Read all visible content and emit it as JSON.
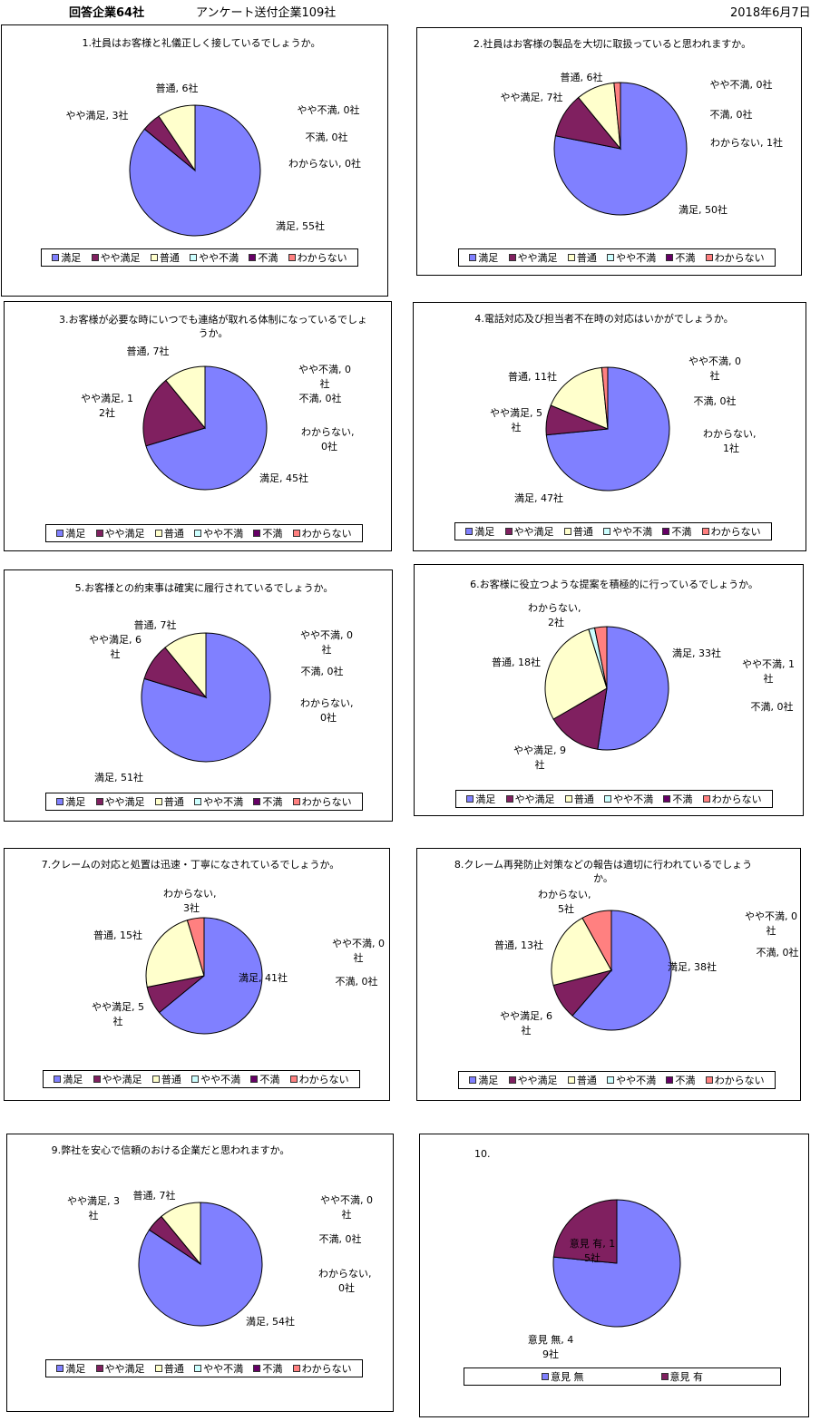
{
  "header": {
    "title": "回答企業64社",
    "sent": "アンケート送付企業109社",
    "date": "2018年6月7日"
  },
  "colors": {
    "満足": "#8080ff",
    "やや満足": "#802060",
    "普通": "#ffffcc",
    "やや不満": "#ccffff",
    "不満": "#660066",
    "わからない": "#ff8080",
    "意見 無": "#8080ff",
    "意見 有": "#802060"
  },
  "legend_labels": [
    "満足",
    "やや満足",
    "普通",
    "やや不満",
    "不満",
    "わからない"
  ],
  "chart_data": [
    {
      "type": "pie",
      "title": "1.社員はお客様と礼儀正しく接しているでしょうか。",
      "categories": [
        "満足",
        "やや満足",
        "普通",
        "やや不満",
        "不満",
        "わからない"
      ],
      "values": [
        55,
        3,
        6,
        0,
        0,
        0
      ],
      "data_labels": [
        "満足, 55社",
        "やや満足, 3社",
        "普通, 6社",
        "やや不満, 0社",
        "不満, 0社",
        "わからない, 0社"
      ]
    },
    {
      "type": "pie",
      "title": "2.社員はお客様の製品を大切に取扱っていると思われますか。",
      "categories": [
        "満足",
        "やや満足",
        "普通",
        "やや不満",
        "不満",
        "わからない"
      ],
      "values": [
        50,
        7,
        6,
        0,
        0,
        1
      ],
      "data_labels": [
        "満足, 50社",
        "やや満足, 7社",
        "普通, 6社",
        "やや不満, 0社",
        "不満, 0社",
        "わからない, 1社"
      ]
    },
    {
      "type": "pie",
      "title": "3.お客様が必要な時にいつでも連絡が取れる体制になっているでしょうか。",
      "categories": [
        "満足",
        "やや満足",
        "普通",
        "やや不満",
        "不満",
        "わからない"
      ],
      "values": [
        45,
        12,
        7,
        0,
        0,
        0
      ],
      "data_labels": [
        "満足, 45社",
        "やや満足, 12社",
        "普通, 7社",
        "やや不満, 0社",
        "不満, 0社",
        "わからない, 0社"
      ]
    },
    {
      "type": "pie",
      "title": "4.電話対応及び担当者不在時の対応はいかがでしょうか。",
      "categories": [
        "満足",
        "やや満足",
        "普通",
        "やや不満",
        "不満",
        "わからない"
      ],
      "values": [
        47,
        5,
        11,
        0,
        0,
        1
      ],
      "data_labels": [
        "満足, 47社",
        "やや満足, 5社",
        "普通, 11社",
        "やや不満, 0社",
        "不満, 0社",
        "わからない, 1社"
      ]
    },
    {
      "type": "pie",
      "title": "5.お客様との約束事は確実に履行されているでしょうか。",
      "categories": [
        "満足",
        "やや満足",
        "普通",
        "やや不満",
        "不満",
        "わからない"
      ],
      "values": [
        51,
        6,
        7,
        0,
        0,
        0
      ],
      "data_labels": [
        "満足, 51社",
        "やや満足, 6社",
        "普通, 7社",
        "やや不満, 0社",
        "不満, 0社",
        "わからない, 0社"
      ]
    },
    {
      "type": "pie",
      "title": "6.お客様に役立つような提案を積極的に行っているでしょうか。",
      "categories": [
        "満足",
        "やや満足",
        "普通",
        "やや不満",
        "不満",
        "わからない"
      ],
      "values": [
        33,
        9,
        18,
        1,
        0,
        2
      ],
      "data_labels": [
        "満足, 33社",
        "やや満足, 9社",
        "普通, 18社",
        "やや不満, 1社",
        "不満, 0社",
        "わからない, 2社"
      ]
    },
    {
      "type": "pie",
      "title": "7.クレームの対応と処置は迅速・丁寧になされているでしょうか。",
      "categories": [
        "満足",
        "やや満足",
        "普通",
        "やや不満",
        "不満",
        "わからない"
      ],
      "values": [
        41,
        5,
        15,
        0,
        0,
        3
      ],
      "data_labels": [
        "満足, 41社",
        "やや満足, 5社",
        "普通, 15社",
        "やや不満, 0社",
        "不満, 0社",
        "わからない, 3社"
      ]
    },
    {
      "type": "pie",
      "title": "8.クレーム再発防止対策などの報告は適切に行われているでしょうか。",
      "categories": [
        "満足",
        "やや満足",
        "普通",
        "やや不満",
        "不満",
        "わからない"
      ],
      "values": [
        38,
        6,
        13,
        0,
        0,
        5
      ],
      "data_labels": [
        "満足, 38社",
        "やや満足, 6社",
        "普通, 13社",
        "やや不満, 0社",
        "不満, 0社",
        "わからない, 5社"
      ]
    },
    {
      "type": "pie",
      "title": "9.弊社を安心で信頼のおける企業だと思われますか。",
      "categories": [
        "満足",
        "やや満足",
        "普通",
        "やや不満",
        "不満",
        "わからない"
      ],
      "values": [
        54,
        3,
        7,
        0,
        0,
        0
      ],
      "data_labels": [
        "満足, 54社",
        "やや満足, 3社",
        "普通, 7社",
        "やや不満, 0社",
        "不満, 0社",
        "わからない, 0社"
      ]
    },
    {
      "type": "pie",
      "title": "10.",
      "categories": [
        "意見 無",
        "意見 有"
      ],
      "values": [
        49,
        15
      ],
      "data_labels": [
        "意見 無, 49社",
        "意見 有, 15社"
      ]
    }
  ]
}
